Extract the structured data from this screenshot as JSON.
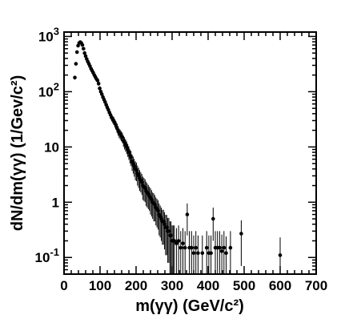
{
  "chart_data": {
    "type": "scatter",
    "title": "",
    "xlabel": "m(γγ) (GeV/c²)",
    "ylabel": "dN/dm(γγ) (1/Gev/c²)",
    "xlim": [
      0,
      700
    ],
    "ylim": [
      0.05,
      1200
    ],
    "y_scale": "log",
    "x_ticks": [
      0,
      100,
      200,
      300,
      400,
      500,
      600,
      700
    ],
    "y_ticks": [
      {
        "value": 0.1,
        "base": "10",
        "exp": "-1"
      },
      {
        "value": 1,
        "base": "1",
        "exp": ""
      },
      {
        "value": 10,
        "base": "10",
        "exp": ""
      },
      {
        "value": 100,
        "base": "10",
        "exp": "2"
      },
      {
        "value": 1000,
        "base": "10",
        "exp": "3"
      }
    ],
    "grid": false,
    "legend": "none",
    "x": [
      30,
      33,
      36,
      39,
      42,
      45,
      48,
      51,
      54,
      57,
      60,
      63,
      66,
      69,
      72,
      75,
      78,
      81,
      84,
      87,
      90,
      93,
      96,
      99,
      102,
      105,
      108,
      111,
      114,
      117,
      120,
      123,
      126,
      129,
      132,
      135,
      138,
      141,
      144,
      147,
      150,
      153,
      156,
      159,
      162,
      165,
      168,
      171,
      174,
      177,
      180,
      183,
      186,
      189,
      192,
      195,
      198,
      201,
      204,
      207,
      210,
      213,
      216,
      219,
      222,
      225,
      228,
      231,
      234,
      237,
      240,
      243,
      246,
      249,
      252,
      255,
      258,
      261,
      264,
      267,
      270,
      273,
      276,
      279,
      282,
      285,
      288,
      291,
      294,
      297,
      300,
      303,
      306,
      312,
      318,
      324,
      330,
      336,
      342,
      348,
      354,
      360,
      366,
      372,
      384,
      396,
      402,
      408,
      414,
      420,
      426,
      432,
      438,
      444,
      450,
      462,
      492,
      600
    ],
    "y": [
      180,
      320,
      520,
      680,
      760,
      790,
      760,
      700,
      600,
      500,
      440,
      390,
      350,
      320,
      290,
      260,
      240,
      220,
      200,
      185,
      170,
      160,
      140,
      115,
      100,
      90,
      80,
      72,
      65,
      58,
      52,
      47,
      42,
      38,
      34,
      32,
      30,
      27,
      25,
      22,
      20,
      18,
      17,
      16,
      15,
      13,
      12,
      11,
      10,
      9.0,
      8.0,
      7.0,
      6.5,
      5.5,
      5.0,
      4.5,
      4.0,
      3.8,
      3.3,
      3.0,
      2.7,
      2.5,
      2.3,
      2.0,
      1.9,
      1.8,
      1.6,
      1.5,
      1.4,
      1.3,
      1.2,
      1.1,
      1.0,
      0.95,
      0.9,
      0.8,
      0.75,
      0.7,
      0.6,
      0.55,
      0.5,
      0.45,
      0.45,
      0.4,
      0.35,
      0.35,
      0.3,
      0.3,
      0.25,
      0.25,
      0.2,
      0.2,
      0.2,
      0.18,
      0.2,
      0.15,
      0.18,
      0.15,
      0.6,
      0.15,
      0.15,
      0.12,
      0.15,
      0.12,
      0.12,
      0.15,
      0.12,
      0.12,
      0.5,
      0.15,
      0.15,
      0.15,
      0.13,
      0.15,
      0.12,
      0.15,
      0.27,
      0.11
    ],
    "yerr": [
      15,
      20,
      25,
      28,
      30,
      30,
      30,
      28,
      25,
      22,
      20,
      18,
      18,
      17,
      16,
      15,
      15,
      14,
      14,
      13,
      13,
      12,
      12,
      10,
      10,
      9,
      8,
      8,
      7,
      7,
      6,
      6,
      6,
      5,
      5,
      5,
      5,
      4.5,
      4.5,
      4,
      4,
      3.5,
      3.5,
      3.3,
      3.2,
      3,
      3,
      2.8,
      2.6,
      2.4,
      2.2,
      2,
      2,
      1.8,
      1.7,
      1.6,
      1.5,
      1.4,
      1.3,
      1.2,
      1.1,
      1.0,
      0.95,
      0.9,
      0.85,
      0.8,
      0.75,
      0.7,
      0.65,
      0.6,
      0.6,
      0.55,
      0.5,
      0.5,
      0.45,
      0.42,
      0.4,
      0.38,
      0.35,
      0.32,
      0.3,
      0.28,
      0.28,
      0.26,
      0.24,
      0.24,
      0.22,
      0.22,
      0.2,
      0.2,
      0.18,
      0.18,
      0.18,
      0.16,
      0.18,
      0.15,
      0.16,
      0.15,
      0.35,
      0.15,
      0.15,
      0.13,
      0.15,
      0.13,
      0.13,
      0.15,
      0.13,
      0.13,
      0.3,
      0.15,
      0.15,
      0.15,
      0.13,
      0.15,
      0.12,
      0.15,
      0.2,
      0.12
    ]
  }
}
